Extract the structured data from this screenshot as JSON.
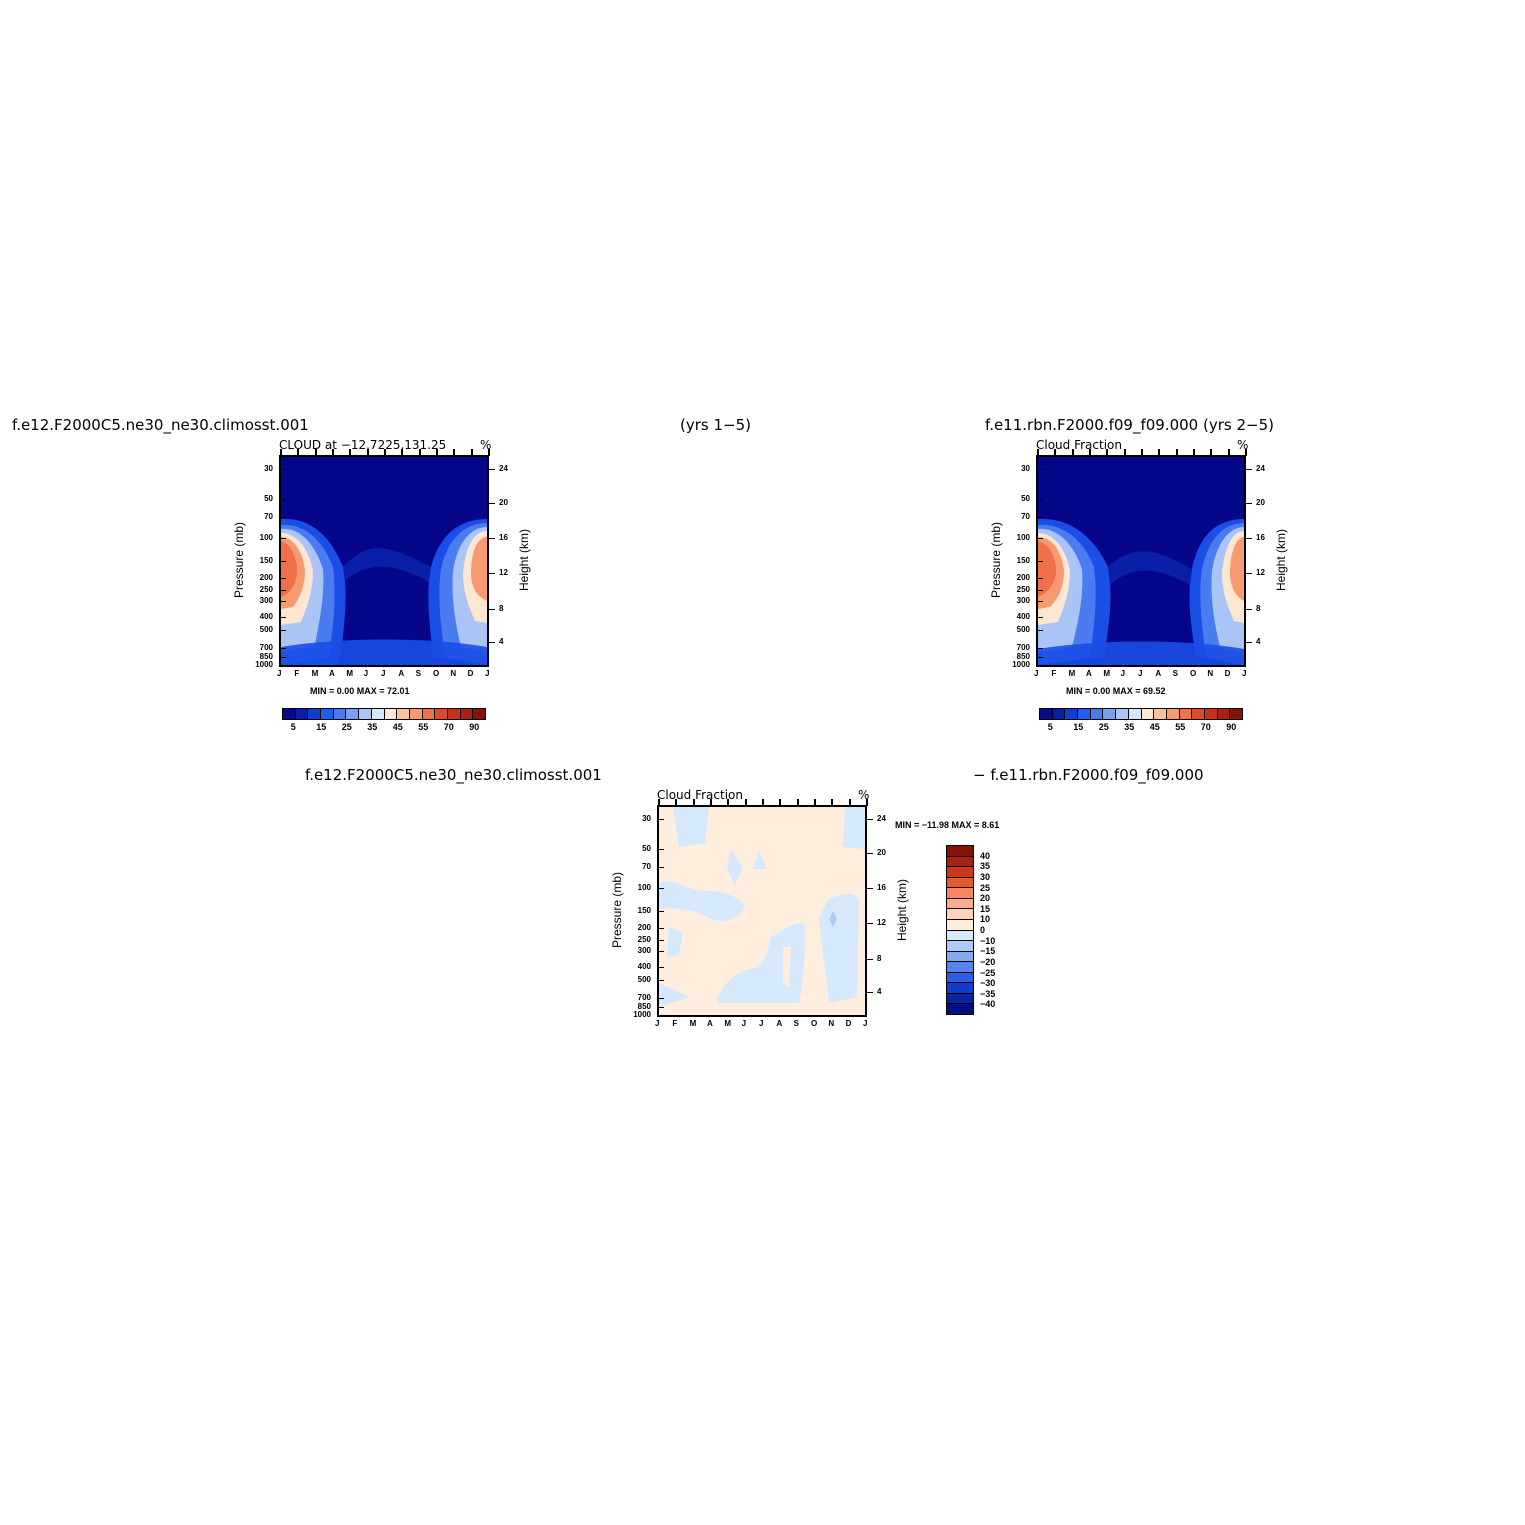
{
  "headers": {
    "left_case": "f.e12.F2000C5.ne30_ne30.climosst.001",
    "years_left": "(yrs 1−5)",
    "right_case": "f.e11.rbn.F2000.f09_f09.000 (yrs 2−5)",
    "diff_left": "f.e12.F2000C5.ne30_ne30.climosst.001",
    "diff_right": "− f.e11.rbn.F2000.f09_f09.000"
  },
  "panels": [
    {
      "title_left": "CLOUD at −12.7225,131.25",
      "title_right": "%",
      "ylabel": "Pressure (mb)",
      "y2label": "Height (km)",
      "stats": "MIN =    0.00 MAX =    72.01"
    },
    {
      "title_left": "Cloud Fraction",
      "title_right": "%",
      "ylabel": "Pressure (mb)",
      "y2label": "Height (km)",
      "stats": "MIN =    0.00 MAX =    69.52"
    },
    {
      "title_left": "Cloud Fraction",
      "title_right": "%",
      "ylabel": "Pressure (mb)",
      "y2label": "Height (km)",
      "stats": "MIN = −11.98 MAX =    8.61"
    }
  ],
  "colorbar_abs": {
    "labels": [
      "5",
      "15",
      "25",
      "35",
      "45",
      "55",
      "70",
      "90"
    ],
    "colors": [
      "#0b0b8a",
      "#0a1fa8",
      "#0f3ed0",
      "#1b5ef0",
      "#4a7cf0",
      "#7a9ef2",
      "#a9c4f5",
      "#d8e6fb",
      "#fde6d2",
      "#fbc2a0",
      "#f79a72",
      "#f0704a",
      "#e2492a",
      "#c8301a",
      "#a8200f",
      "#851406"
    ]
  },
  "colorbar_diff": {
    "labels": [
      "40",
      "35",
      "30",
      "25",
      "20",
      "15",
      "10",
      "0",
      "−10",
      "−15",
      "−20",
      "−25",
      "−30",
      "−35",
      "−40"
    ],
    "colors": [
      "#851406",
      "#a8200f",
      "#d0361c",
      "#e65a32",
      "#f58660",
      "#f9ae8c",
      "#fdd2b8",
      "#ffeedd",
      "#d6e8fc",
      "#b0ccf6",
      "#86a9f0",
      "#5584ec",
      "#2a5fe4",
      "#123ccc",
      "#0a24a0",
      "#060f80"
    ]
  },
  "chart_data": [
    {
      "type": "heatmap",
      "title": "CLOUD at −12.7225,131.25",
      "units": "%",
      "x": [
        "J",
        "F",
        "M",
        "A",
        "M",
        "J",
        "J",
        "A",
        "S",
        "O",
        "N",
        "D",
        "J"
      ],
      "y_pressure": [
        "30",
        "50",
        "70",
        "100",
        "150",
        "200",
        "250",
        "300",
        "400",
        "500",
        "700",
        "850",
        "1000"
      ],
      "y_height_km": [
        "24",
        "20",
        "16",
        "12",
        "8",
        "4"
      ],
      "ylabel": "Pressure (mb)",
      "y2label": "Height (km)",
      "min": 0.0,
      "max": 72.01
    },
    {
      "type": "heatmap",
      "title": "Cloud Fraction",
      "units": "%",
      "x": [
        "J",
        "F",
        "M",
        "A",
        "M",
        "J",
        "J",
        "A",
        "S",
        "O",
        "N",
        "D",
        "J"
      ],
      "y_pressure": [
        "30",
        "50",
        "70",
        "100",
        "150",
        "200",
        "250",
        "300",
        "400",
        "500",
        "700",
        "850",
        "1000"
      ],
      "y_height_km": [
        "24",
        "20",
        "16",
        "12",
        "8",
        "4"
      ],
      "ylabel": "Pressure (mb)",
      "y2label": "Height (km)",
      "min": 0.0,
      "max": 69.52
    },
    {
      "type": "heatmap",
      "title": "Cloud Fraction",
      "units": "%",
      "x": [
        "J",
        "F",
        "M",
        "A",
        "M",
        "J",
        "J",
        "A",
        "S",
        "O",
        "N",
        "D",
        "J"
      ],
      "y_pressure": [
        "30",
        "50",
        "70",
        "100",
        "150",
        "200",
        "250",
        "300",
        "400",
        "500",
        "700",
        "850",
        "1000"
      ],
      "y_height_km": [
        "24",
        "20",
        "16",
        "12",
        "8",
        "4"
      ],
      "ylabel": "Pressure (mb)",
      "y2label": "Height (km)",
      "min": -11.98,
      "max": 8.61
    }
  ]
}
